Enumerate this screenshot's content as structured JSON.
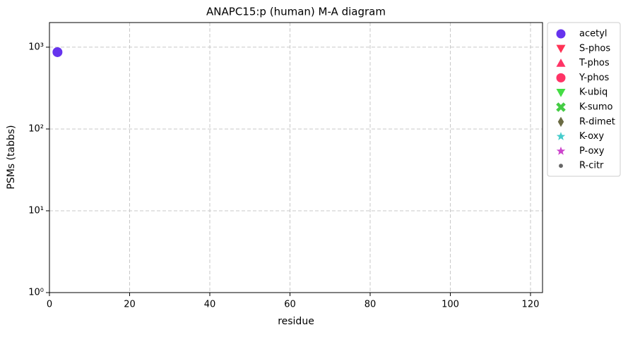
{
  "chart_data": {
    "type": "scatter",
    "title": "ANAPC15:p (human) M-A diagram",
    "x_label": "residue",
    "y_label": "PSMs (tabbs)",
    "xlim": [
      0,
      123
    ],
    "xticks": [
      0,
      20,
      40,
      60,
      80,
      100,
      120
    ],
    "ylim": [
      1,
      2000
    ],
    "y_scale": "log",
    "yticks": [
      {
        "value": 1,
        "label": "10⁰"
      },
      {
        "value": 10,
        "label": "10¹"
      },
      {
        "value": 100,
        "label": "10²"
      },
      {
        "value": 1000,
        "label": "10³"
      }
    ],
    "grid": true,
    "legend": "outside-right",
    "series": [
      {
        "name": "acetyl",
        "color": "#6633ee",
        "marker": "circle",
        "x": [
          2
        ],
        "values": [
          870
        ]
      },
      {
        "name": "S-phos",
        "color": "#ff3355",
        "marker": "triangle-down",
        "x": [],
        "values": []
      },
      {
        "name": "T-phos",
        "color": "#ff3366",
        "marker": "triangle-up",
        "x": [],
        "values": []
      },
      {
        "name": "Y-phos",
        "color": "#ff3366",
        "marker": "circle",
        "x": [],
        "values": []
      },
      {
        "name": "K-ubiq",
        "color": "#44dd44",
        "marker": "triangle-down",
        "x": [],
        "values": []
      },
      {
        "name": "K-sumo",
        "color": "#44cc44",
        "marker": "x",
        "x": [],
        "values": []
      },
      {
        "name": "R-dimet",
        "color": "#6b6b44",
        "marker": "diamond",
        "x": [],
        "values": []
      },
      {
        "name": "K-oxy",
        "color": "#44cccc",
        "marker": "star",
        "x": [],
        "values": []
      },
      {
        "name": "P-oxy",
        "color": "#cc44cc",
        "marker": "star",
        "x": [],
        "values": []
      },
      {
        "name": "R-citr",
        "color": "#666666",
        "marker": "point",
        "x": [],
        "values": []
      }
    ]
  }
}
